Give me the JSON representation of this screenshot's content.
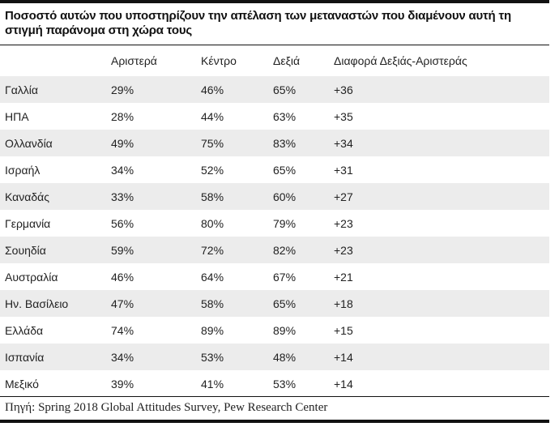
{
  "title": "Ποσοστό αυτών που υποστηρίζουν την απέλαση των μεταναστών που διαμένουν αυτή τη στιγμή παράνομα στη χώρα τους",
  "columns": [
    "",
    "Αριστερά",
    "Κέντρο",
    "Δεξιά",
    "Διαφορά Δεξιάς-Αριστεράς"
  ],
  "rows": [
    [
      "Γαλλία",
      "29%",
      "46%",
      "65%",
      "+36"
    ],
    [
      "ΗΠΑ",
      "28%",
      "44%",
      "63%",
      "+35"
    ],
    [
      "Ολλανδία",
      "49%",
      "75%",
      "83%",
      "+34"
    ],
    [
      "Ισραήλ",
      "34%",
      "52%",
      "65%",
      "+31"
    ],
    [
      "Καναδάς",
      "33%",
      "58%",
      "60%",
      "+27"
    ],
    [
      "Γερμανία",
      "56%",
      "80%",
      "79%",
      "+23"
    ],
    [
      "Σουηδία",
      "59%",
      "72%",
      "82%",
      "+23"
    ],
    [
      "Αυστραλία",
      "46%",
      "64%",
      "67%",
      "+21"
    ],
    [
      "Ην. Βασίλειο",
      "47%",
      "58%",
      "65%",
      "+18"
    ],
    [
      "Ελλάδα",
      "74%",
      "89%",
      "89%",
      "+15"
    ],
    [
      "Ισπανία",
      "34%",
      "53%",
      "48%",
      "+14"
    ],
    [
      "Μεξικό",
      "39%",
      "41%",
      "53%",
      "+14"
    ]
  ],
  "source": "Πηγή: Spring 2018 Global Attitudes Survey, Pew Research Center",
  "colors": {
    "row_shade": "#ececec",
    "rule": "#111111",
    "text": "#222222"
  }
}
